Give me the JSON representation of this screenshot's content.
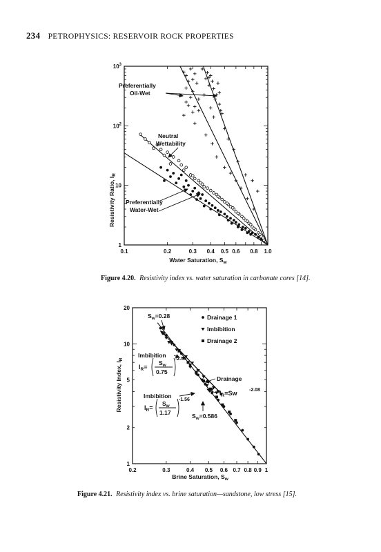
{
  "header": {
    "page_number": "234",
    "title": "PETROPHYSICS: RESERVOIR ROCK PROPERTIES"
  },
  "figure_1": {
    "caption_label": "Figure 4.20.",
    "caption_text": "Resistivity index vs. water saturation in carbonate cores [14].",
    "annotations": {
      "oil_wet_1": "Preferentially",
      "oil_wet_2": "Oil-Wet",
      "neutral_1": "Neutral",
      "neutral_2": "Wettability",
      "water_wet_1": "Preferentially",
      "water_wet_2": "Water-Wet"
    }
  },
  "figure_2": {
    "caption_label": "Figure 4.21.",
    "caption_text": "Resistivity index vs. brine saturation—sandstone, low stress [15].",
    "annotations": {
      "sw_028": "S",
      "sw_028_sub": "w",
      "sw_028_val": "=0.28",
      "imbibition_a": "Imbibition",
      "ir_a_prefix": "I",
      "ir_a_sub": "R",
      "ir_a_eq": "=",
      "ir_a_num": "S",
      "ir_a_num_sub": "w",
      "ir_a_den": "0.75",
      "ir_a_exp": "-2.56",
      "drainage": "Drainage",
      "ir_b_prefix": "I",
      "ir_b_sub": "R",
      "ir_b_eq": "=Sw",
      "ir_b_exp": "-2.08",
      "imbibition_b": "Imbibition",
      "ir_c_prefix": "I",
      "ir_c_sub": "R",
      "ir_c_eq": "=",
      "ir_c_num": "S",
      "ir_c_num_sub": "w",
      "ir_c_den": "1.17",
      "ir_c_exp": "-1.56",
      "sw_0586": "S",
      "sw_0586_sub": "w",
      "sw_0586_val": "=0.586"
    }
  },
  "chart_data": [
    {
      "type": "scatter",
      "xlabel": "Water Saturation, S",
      "xlabel_sub": "w",
      "ylabel": "Resistivity Ratio, I",
      "ylabel_sub": "R",
      "x_scale": "log",
      "y_scale": "log",
      "xlim": [
        0.1,
        1.0
      ],
      "ylim": [
        1,
        1000
      ],
      "x_tick_labels": [
        {
          "v": 0.1,
          "t": "0.1"
        },
        {
          "v": 0.2,
          "t": "0.2"
        },
        {
          "v": 0.3,
          "t": "0.3"
        },
        {
          "v": 0.4,
          "t": "0.4"
        },
        {
          "v": 0.5,
          "t": "0.5"
        },
        {
          "v": 0.6,
          "t": "0.6"
        },
        {
          "v": 0.8,
          "t": "0.8"
        },
        {
          "v": 1.0,
          "t": "1.0"
        }
      ],
      "y_tick_labels": [
        {
          "v": 1,
          "t": "1",
          "sup": ""
        },
        {
          "v": 10,
          "t": "10",
          "sup": ""
        },
        {
          "v": 100,
          "t": "10",
          "sup": "2"
        },
        {
          "v": 1000,
          "t": "10",
          "sup": "3"
        }
      ],
      "lines": [
        {
          "name": "oil-wet-line-1",
          "points": [
            [
              0.245,
              1000
            ],
            [
              1.0,
              1
            ]
          ]
        },
        {
          "name": "oil-wet-line-2",
          "points": [
            [
              0.355,
              1000
            ],
            [
              1.0,
              1
            ]
          ]
        },
        {
          "name": "neutral-line",
          "points": [
            [
              0.13,
              70
            ],
            [
              1.0,
              1
            ]
          ]
        },
        {
          "name": "water-wet-line",
          "points": [
            [
              0.1,
              35
            ],
            [
              1.0,
              1
            ]
          ]
        }
      ],
      "series": [
        {
          "marker": "plus",
          "points": [
            [
              0.26,
              800
            ],
            [
              0.27,
              700
            ],
            [
              0.29,
              900
            ],
            [
              0.31,
              750
            ],
            [
              0.3,
              600
            ],
            [
              0.28,
              560
            ],
            [
              0.32,
              520
            ],
            [
              0.27,
              430
            ],
            [
              0.3,
              380
            ],
            [
              0.29,
              300
            ],
            [
              0.33,
              280
            ],
            [
              0.27,
              250
            ],
            [
              0.28,
              220
            ],
            [
              0.31,
              210
            ],
            [
              0.3,
              170
            ],
            [
              0.26,
              150
            ],
            [
              0.35,
              900
            ],
            [
              0.38,
              780
            ],
            [
              0.4,
              700
            ],
            [
              0.37,
              620
            ],
            [
              0.41,
              560
            ],
            [
              0.39,
              480
            ],
            [
              0.42,
              420
            ],
            [
              0.44,
              330
            ],
            [
              0.43,
              280
            ],
            [
              0.46,
              230
            ],
            [
              0.4,
              200
            ],
            [
              0.48,
              160
            ],
            [
              0.42,
              140
            ],
            [
              0.39,
              650
            ],
            [
              0.45,
              520
            ],
            [
              0.5,
              90
            ],
            [
              0.53,
              60
            ],
            [
              0.58,
              40
            ],
            [
              0.62,
              25
            ],
            [
              0.7,
              15
            ],
            [
              0.78,
              12
            ],
            [
              0.85,
              8
            ],
            [
              0.36,
              330
            ],
            [
              0.33,
              180
            ],
            [
              0.46,
              360
            ],
            [
              0.47,
              180
            ],
            [
              0.31,
              110
            ],
            [
              0.37,
              70
            ],
            [
              0.41,
              50
            ],
            [
              0.44,
              30
            ],
            [
              0.5,
              20
            ],
            [
              0.55,
              16
            ],
            [
              0.6,
              12
            ],
            [
              0.65,
              9
            ],
            [
              0.72,
              6
            ],
            [
              0.8,
              4
            ]
          ]
        },
        {
          "marker": "open-circle",
          "points": [
            [
              0.13,
              72
            ],
            [
              0.14,
              60
            ],
            [
              0.15,
              52
            ],
            [
              0.17,
              48
            ],
            [
              0.16,
              42
            ],
            [
              0.18,
              40
            ],
            [
              0.2,
              36
            ],
            [
              0.19,
              32
            ],
            [
              0.22,
              30
            ],
            [
              0.24,
              26
            ],
            [
              0.21,
              23
            ],
            [
              0.25,
              22
            ],
            [
              0.27,
              20
            ],
            [
              0.26,
              18
            ],
            [
              0.29,
              15
            ],
            [
              0.31,
              13
            ],
            [
              0.33,
              12
            ],
            [
              0.35,
              10.5
            ],
            [
              0.36,
              9.5
            ],
            [
              0.38,
              9
            ],
            [
              0.4,
              8.2
            ],
            [
              0.42,
              7.5
            ],
            [
              0.44,
              7
            ],
            [
              0.46,
              6.3
            ],
            [
              0.48,
              5.8
            ],
            [
              0.5,
              5.3
            ],
            [
              0.53,
              4.8
            ],
            [
              0.55,
              4.4
            ],
            [
              0.58,
              4
            ],
            [
              0.6,
              3.6
            ],
            [
              0.63,
              3.3
            ],
            [
              0.66,
              3
            ],
            [
              0.7,
              2.6
            ],
            [
              0.74,
              2.3
            ],
            [
              0.78,
              2
            ],
            [
              0.82,
              1.8
            ],
            [
              0.86,
              1.6
            ],
            [
              0.9,
              1.4
            ],
            [
              0.94,
              1.2
            ],
            [
              0.3,
              14.5
            ],
            [
              0.34,
              11
            ],
            [
              0.45,
              6.5
            ],
            [
              0.52,
              5
            ],
            [
              0.57,
              4.2
            ],
            [
              0.62,
              3.4
            ],
            [
              0.68,
              2.8
            ],
            [
              0.72,
              2.5
            ],
            [
              0.76,
              2.2
            ],
            [
              0.8,
              1.9
            ],
            [
              0.88,
              1.5
            ]
          ]
        },
        {
          "marker": "filled-circle",
          "points": [
            [
              0.18,
              20
            ],
            [
              0.2,
              18
            ],
            [
              0.22,
              16
            ],
            [
              0.25,
              15
            ],
            [
              0.24,
              13
            ],
            [
              0.27,
              12
            ],
            [
              0.23,
              11
            ],
            [
              0.28,
              10
            ],
            [
              0.31,
              9
            ],
            [
              0.3,
              8
            ],
            [
              0.33,
              7.5
            ],
            [
              0.35,
              7
            ],
            [
              0.34,
              6
            ],
            [
              0.37,
              5.5
            ],
            [
              0.39,
              5
            ],
            [
              0.41,
              4.6
            ],
            [
              0.43,
              4.2
            ],
            [
              0.45,
              3.8
            ],
            [
              0.47,
              3.6
            ],
            [
              0.5,
              3.3
            ],
            [
              0.52,
              3
            ],
            [
              0.55,
              2.8
            ],
            [
              0.58,
              2.6
            ],
            [
              0.6,
              2.4
            ],
            [
              0.63,
              2.2
            ],
            [
              0.67,
              2
            ],
            [
              0.7,
              1.9
            ],
            [
              0.74,
              1.7
            ],
            [
              0.78,
              1.6
            ],
            [
              0.82,
              1.5
            ],
            [
              0.86,
              1.35
            ],
            [
              0.9,
              1.25
            ],
            [
              0.26,
              9.5
            ],
            [
              0.29,
              7
            ],
            [
              0.36,
              4.5
            ],
            [
              0.4,
              4
            ],
            [
              0.46,
              3.2
            ],
            [
              0.53,
              2.6
            ],
            [
              0.56,
              2.3
            ],
            [
              0.62,
              2
            ],
            [
              0.66,
              1.8
            ],
            [
              0.72,
              1.6
            ],
            [
              0.76,
              1.5
            ],
            [
              0.21,
              14
            ],
            [
              0.19,
              12
            ],
            [
              0.32,
              5.8
            ]
          ]
        }
      ]
    },
    {
      "type": "scatter",
      "xlabel": "Brine Saturation, S",
      "xlabel_sub": "w",
      "ylabel": "Resistivity Index, I",
      "ylabel_sub": "R",
      "x_scale": "log",
      "y_scale": "log",
      "xlim": [
        0.2,
        1.0
      ],
      "ylim": [
        1,
        20
      ],
      "x_tick_labels": [
        {
          "v": 0.2,
          "t": "0.2"
        },
        {
          "v": 0.3,
          "t": "0.3"
        },
        {
          "v": 0.4,
          "t": "0.4"
        },
        {
          "v": 0.5,
          "t": "0.5"
        },
        {
          "v": 0.6,
          "t": "0.6"
        },
        {
          "v": 0.7,
          "t": "0.7"
        },
        {
          "v": 0.8,
          "t": "0.8"
        },
        {
          "v": 0.9,
          "t": "0.9"
        },
        {
          "v": 1.0,
          "t": "1"
        }
      ],
      "y_tick_labels": [
        {
          "v": 1,
          "t": "1",
          "sup": ""
        },
        {
          "v": 2,
          "t": "2",
          "sup": ""
        },
        {
          "v": 5,
          "t": "5",
          "sup": ""
        },
        {
          "v": 10,
          "t": "10",
          "sup": ""
        },
        {
          "v": 20,
          "t": "20",
          "sup": ""
        }
      ],
      "legend": [
        {
          "marker": "filled-circle",
          "label": "Drainage 1"
        },
        {
          "marker": "filled-triangle-down",
          "label": "Imbibition"
        },
        {
          "marker": "filled-square",
          "label": "Drainage 2"
        }
      ],
      "lines": [
        {
          "name": "drainage-line",
          "points": [
            [
              0.27,
              15
            ],
            [
              1.0,
              1
            ]
          ]
        },
        {
          "name": "imbibition-line-upper",
          "points": [
            [
              0.28,
              12.9
            ],
            [
              0.586,
              3.78
            ]
          ]
        },
        {
          "name": "imbibition-line-lower",
          "points": [
            [
              0.28,
              12.9
            ],
            [
              0.586,
              3.78
            ]
          ]
        }
      ],
      "series": [
        {
          "name": "Drainage 1",
          "marker": "filled-circle",
          "points": [
            [
              0.28,
              13.5
            ],
            [
              0.3,
              11.8
            ],
            [
              0.33,
              9.8
            ],
            [
              0.36,
              8.3
            ],
            [
              0.4,
              6.7
            ],
            [
              0.44,
              5.5
            ],
            [
              0.48,
              4.6
            ],
            [
              0.52,
              3.9
            ],
            [
              0.56,
              3.4
            ],
            [
              0.6,
              3.0
            ],
            [
              0.65,
              2.6
            ],
            [
              0.7,
              2.2
            ],
            [
              0.75,
              1.9
            ],
            [
              0.8,
              1.6
            ],
            [
              0.86,
              1.38
            ],
            [
              0.91,
              1.2
            ]
          ]
        },
        {
          "name": "Imbibition",
          "marker": "filled-triangle-down",
          "points": [
            [
              0.285,
              12.4
            ],
            [
              0.3,
              11.2
            ],
            [
              0.32,
              10.0
            ],
            [
              0.35,
              8.8
            ],
            [
              0.38,
              7.8
            ],
            [
              0.41,
              6.9
            ],
            [
              0.44,
              6.0
            ],
            [
              0.47,
              5.3
            ],
            [
              0.5,
              4.8
            ],
            [
              0.53,
              4.3
            ],
            [
              0.56,
              4.0
            ],
            [
              0.58,
              3.8
            ],
            [
              0.31,
              10.3
            ],
            [
              0.34,
              8.9
            ],
            [
              0.37,
              7.6
            ],
            [
              0.4,
              6.4
            ],
            [
              0.43,
              5.6
            ],
            [
              0.46,
              5.0
            ],
            [
              0.49,
              4.5
            ],
            [
              0.52,
              4.15
            ],
            [
              0.55,
              3.9
            ]
          ]
        },
        {
          "name": "Drainage 2",
          "marker": "filled-square",
          "points": [
            [
              0.29,
              12.2
            ],
            [
              0.32,
              10.3
            ],
            [
              0.35,
              8.7
            ],
            [
              0.39,
              7.0
            ],
            [
              0.43,
              5.8
            ],
            [
              0.47,
              4.9
            ],
            [
              0.51,
              4.2
            ],
            [
              0.55,
              3.6
            ],
            [
              0.59,
              3.1
            ],
            [
              0.64,
              2.7
            ],
            [
              0.69,
              2.3
            ]
          ]
        }
      ]
    }
  ]
}
